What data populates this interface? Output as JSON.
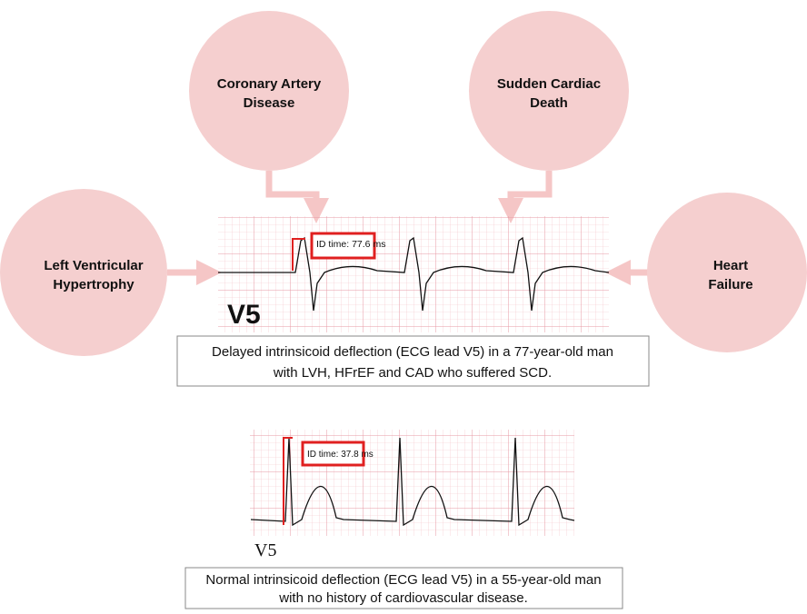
{
  "nodes": [
    {
      "label": [
        "Coronary Artery",
        "Disease"
      ]
    },
    {
      "label": [
        "Sudden Cardiac",
        "Death"
      ]
    },
    {
      "label": [
        "Left Ventricular",
        "Hypertrophy"
      ]
    },
    {
      "label": [
        "Heart",
        "Failure"
      ]
    }
  ],
  "ecg_top": {
    "id_time": "ID time: 77.6 ms",
    "lead": "V5",
    "caption": [
      "Delayed intrinsicoid deflection (ECG lead V5) in a 77-year-old man",
      "with LVH, HFrEF and CAD who suffered SCD."
    ]
  },
  "ecg_bottom": {
    "id_time": "ID time: 37.8 ms",
    "lead": "V5",
    "caption": [
      "Normal intrinsicoid deflection (ECG lead V5) in a 55-year-old man",
      "with no history of cardiovascular disease."
    ]
  }
}
